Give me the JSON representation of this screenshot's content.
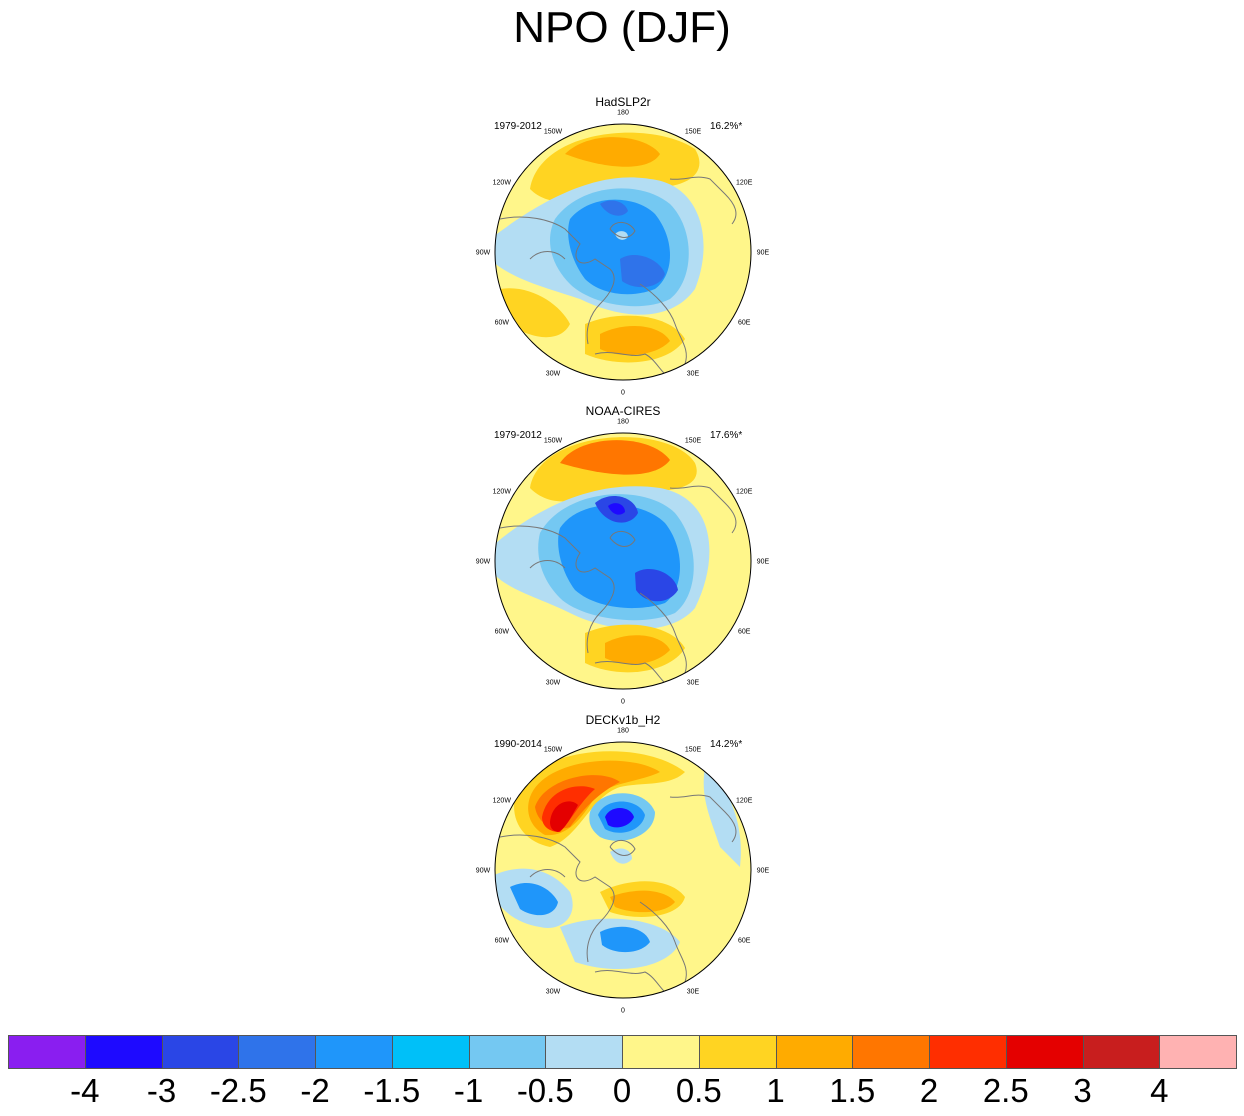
{
  "title": "NPO (DJF)",
  "panels": [
    {
      "name": "HadSLP2r",
      "years": "1979-2012",
      "percent": "16.2%*"
    },
    {
      "name": "NOAA-CIRES",
      "years": "1979-2012",
      "percent": "17.6%*"
    },
    {
      "name": "DECKv1b_H2",
      "years": "1990-2014",
      "percent": "14.2%*"
    }
  ],
  "longitude_labels": [
    "180",
    "150E",
    "120E",
    "90E",
    "60E",
    "30E",
    "0",
    "30W",
    "60W",
    "90W",
    "120W",
    "150W"
  ],
  "colorbar": {
    "colors": [
      "#8a1ef0",
      "#1e0aff",
      "#2a46e6",
      "#2f73ea",
      "#1f96fa",
      "#00c0f8",
      "#74c8f2",
      "#b3ddf3",
      "#fff68a",
      "#ffd422",
      "#ffab00",
      "#ff7600",
      "#ff2e00",
      "#e40000",
      "#c81e1e",
      "#ffb2b2"
    ],
    "labels": [
      "-4",
      "-3",
      "-2.5",
      "-2",
      "-1.5",
      "-1",
      "-0.5",
      "0",
      "0.5",
      "1",
      "1.5",
      "2",
      "2.5",
      "3",
      "4"
    ]
  }
}
